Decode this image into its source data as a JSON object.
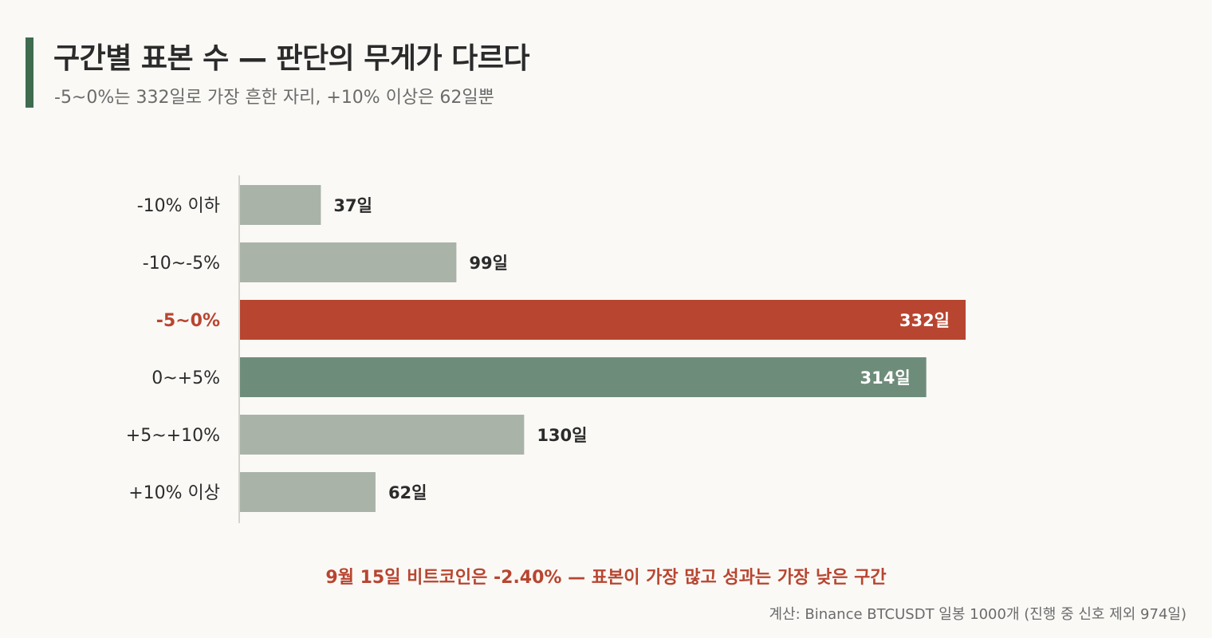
{
  "header": {
    "title": "구간별 표본 수 — 판단의 무게가 다르다",
    "subtitle": "-5~0%는 332일로 가장 흔한 자리, +10% 이상은 62일뿐"
  },
  "chart_data": {
    "type": "bar",
    "orientation": "horizontal",
    "categories": [
      "-10% 이하",
      "-10~-5%",
      "-5~0%",
      "0~+5%",
      "+5~+10%",
      "+10% 이상"
    ],
    "values": [
      37,
      99,
      332,
      314,
      130,
      62
    ],
    "value_labels": [
      "37일",
      "99일",
      "332일",
      "314일",
      "130일",
      "62일"
    ],
    "unit": "일",
    "xlim": [
      0,
      332
    ],
    "grid": false,
    "highlight_index": 2,
    "secondary_index": 3,
    "colors": {
      "default": "#a9b3a7",
      "highlight": "#b84530",
      "secondary": "#6e8c7a",
      "label_default": "#2b2b2b",
      "label_highlight": "#b84530"
    }
  },
  "footer": {
    "callout": "9월 15일 비트코인은 -2.40% — 표본이 가장 많고 성과는 가장 낮은 구간",
    "source": "계산: Binance BTCUSDT 일봉 1000개 (진행 중 신호 제외 974일)"
  },
  "colors": {
    "accent": "#3f6b4e",
    "background": "#faf9f6"
  }
}
